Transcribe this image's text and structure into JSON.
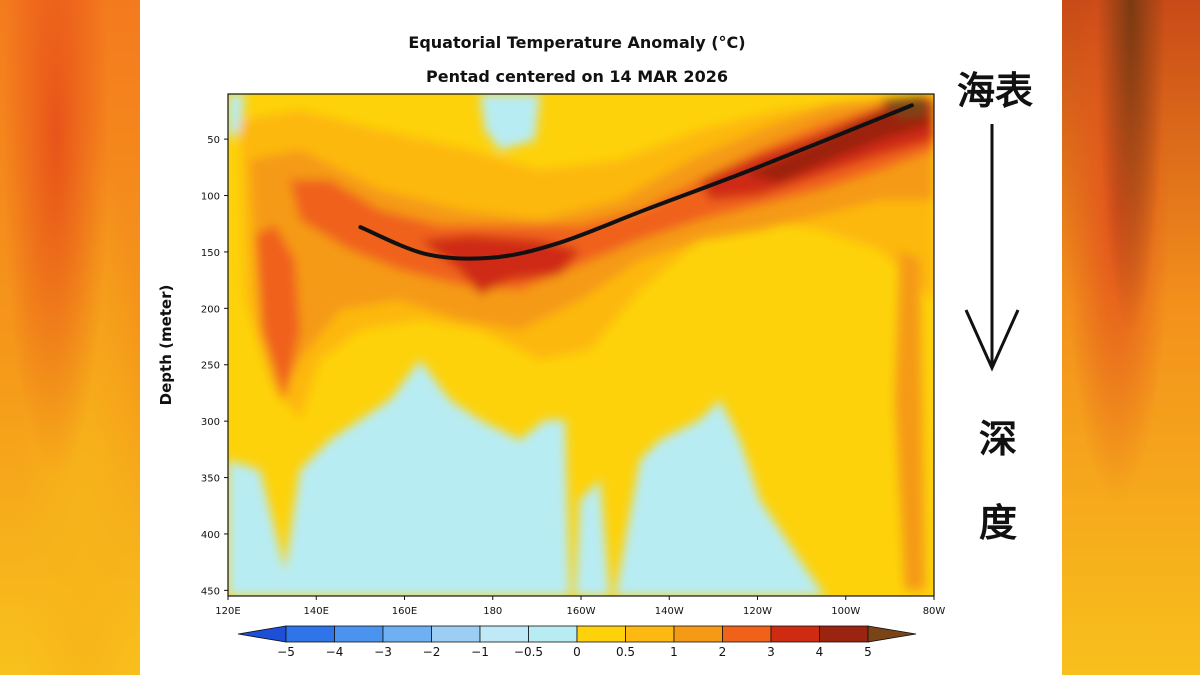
{
  "chart_data": {
    "type": "heatmap",
    "title": "Equatorial Temperature Anomaly (°C)",
    "subtitle": "Pentad centered on 14 MAR 2026",
    "ylabel": "Depth (meter)",
    "xlabel": "",
    "x_ticks": [
      "120E",
      "140E",
      "160E",
      "180",
      "160W",
      "140W",
      "120W",
      "100W",
      "80W"
    ],
    "y_ticks": [
      50,
      100,
      150,
      200,
      250,
      300,
      350,
      400,
      450
    ],
    "xlim": [
      "120E",
      "80W"
    ],
    "ylim": [
      10,
      455
    ],
    "colorbar": {
      "levels": [
        "-5",
        "-4",
        "-3",
        "-2",
        "-1",
        "-0.5",
        "0",
        "0.5",
        "1",
        "2",
        "3",
        "4",
        "5"
      ],
      "colors": [
        "#1d4fd8",
        "#2f74e8",
        "#4a93ee",
        "#6fb0f2",
        "#9ccdf5",
        "#bfe9f6",
        "#b8ecf3",
        "#fdd20b",
        "#fdb811",
        "#f59a15",
        "#f0621a",
        "#cf2a12",
        "#9b2410",
        "#7a4417"
      ]
    },
    "thermocline_annotation": {
      "points": [
        [
          150,
          128
        ],
        [
          165,
          152
        ],
        [
          180,
          155
        ],
        [
          195,
          142
        ],
        [
          215,
          112
        ],
        [
          240,
          75
        ],
        [
          275,
          20
        ]
      ]
    },
    "annotations": {
      "surface_label": "海表",
      "depth_label": [
        "深",
        "度"
      ]
    }
  }
}
